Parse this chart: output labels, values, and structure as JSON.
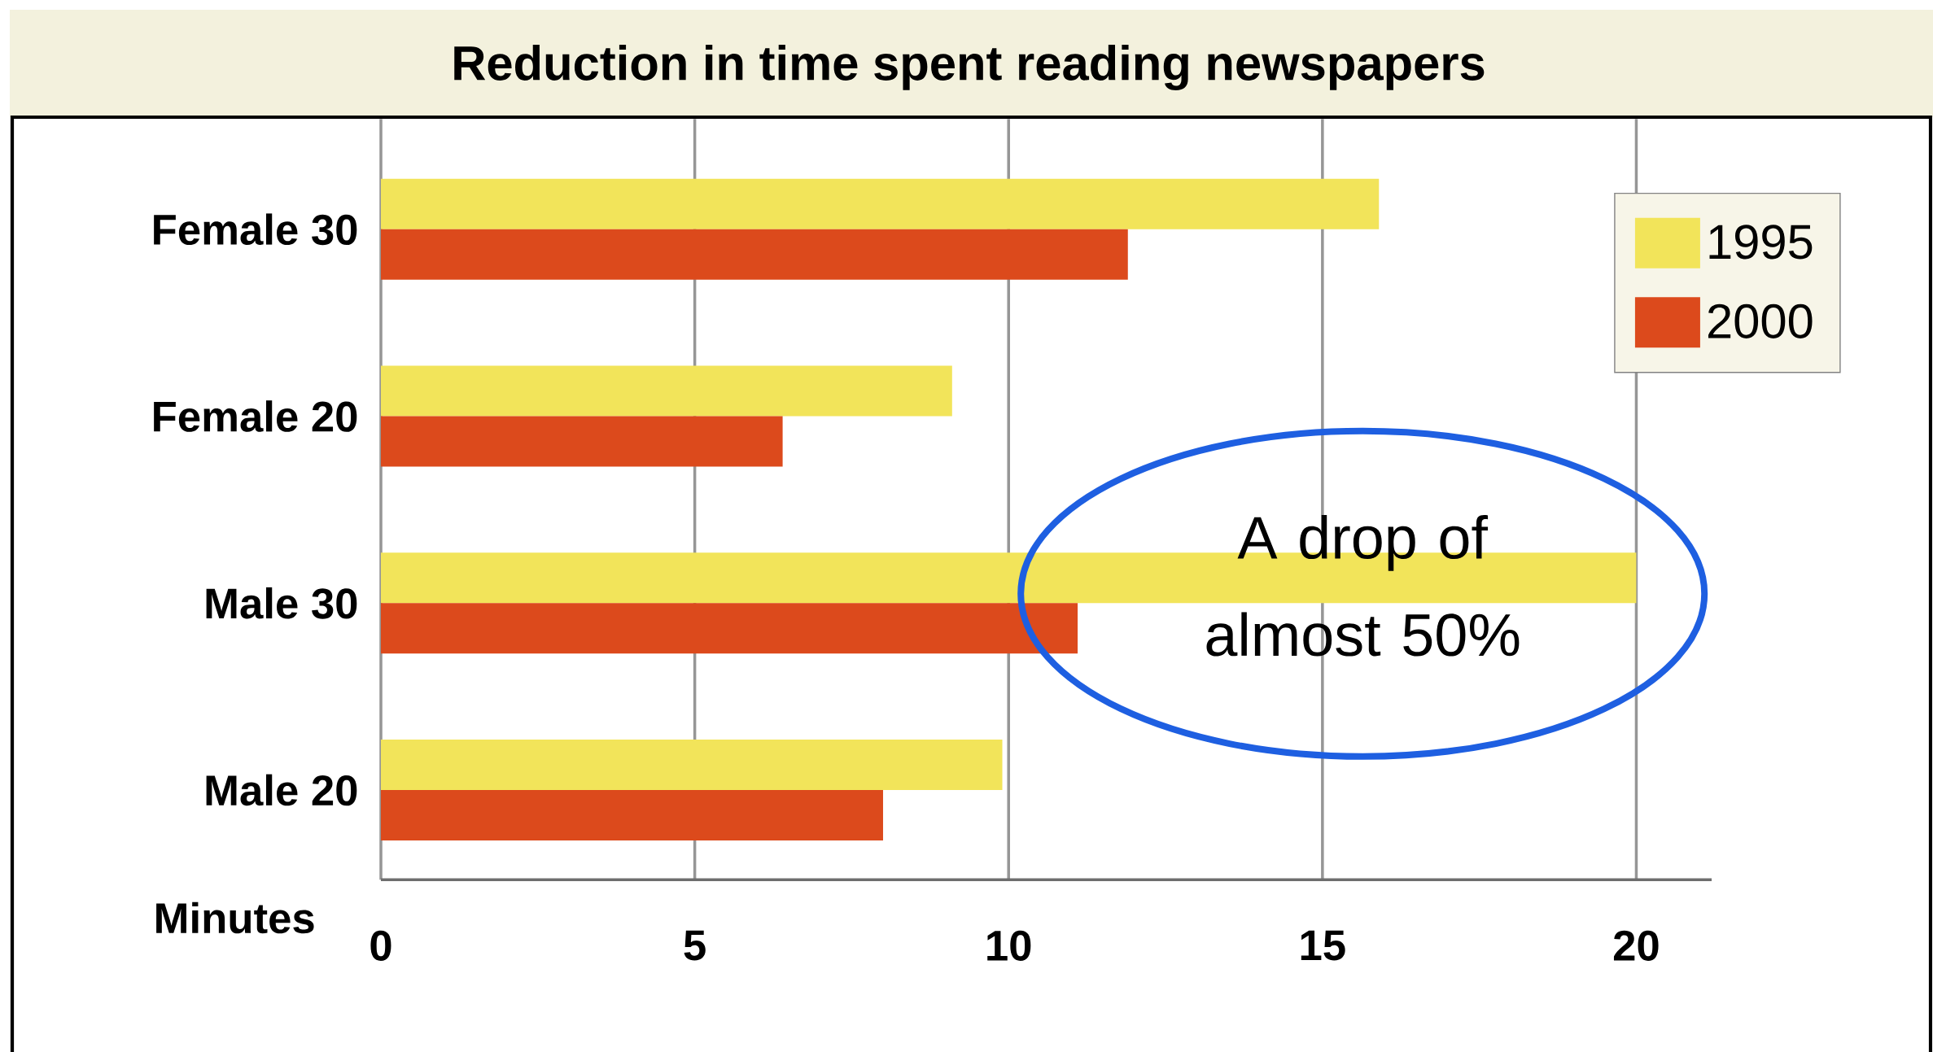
{
  "chart_data": {
    "type": "bar",
    "orientation": "horizontal",
    "title": "Reduction in time spent reading newspapers",
    "xlabel": "Minutes",
    "categories": [
      "Female 30",
      "Female 20",
      "Male 30",
      "Male 20"
    ],
    "series": [
      {
        "name": "1995",
        "color": "#f2e45a",
        "values": [
          15.9,
          9.1,
          20,
          9.9
        ]
      },
      {
        "name": "2000",
        "color": "#dc4a1c",
        "values": [
          11.9,
          6.4,
          11.1,
          8.0
        ]
      }
    ],
    "xlim": [
      0,
      21.2
    ],
    "xticks": [
      0,
      5,
      10,
      15,
      20
    ],
    "grid": "x",
    "legend": "top right",
    "annotations": [
      "A drop of almost 50%"
    ]
  }
}
